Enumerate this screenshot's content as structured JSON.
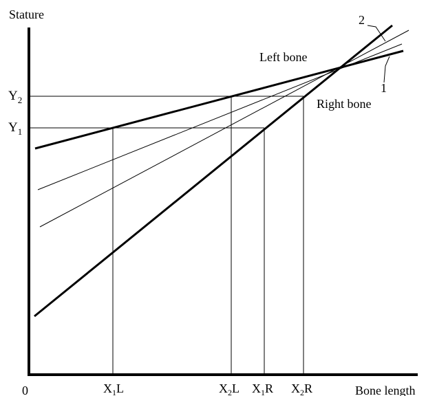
{
  "axes": {
    "y_label": "Stature",
    "x_label": "Bone length",
    "origin_label": "0"
  },
  "y_markers": [
    {
      "base": "Y",
      "sub": "2"
    },
    {
      "base": "Y",
      "sub": "1"
    }
  ],
  "x_markers": [
    {
      "base": "X",
      "sub": "1",
      "suffix": "L"
    },
    {
      "base": "X",
      "sub": "2",
      "suffix": "L"
    },
    {
      "base": "X",
      "sub": "1",
      "suffix": "R"
    },
    {
      "base": "X",
      "sub": "2",
      "suffix": "R"
    }
  ],
  "lines": {
    "left_bone": "Left bone",
    "right_bone": "Right bone",
    "line_1": "1",
    "line_2": "2"
  },
  "colors": {
    "ink": "#000000",
    "background": "#ffffff"
  }
}
